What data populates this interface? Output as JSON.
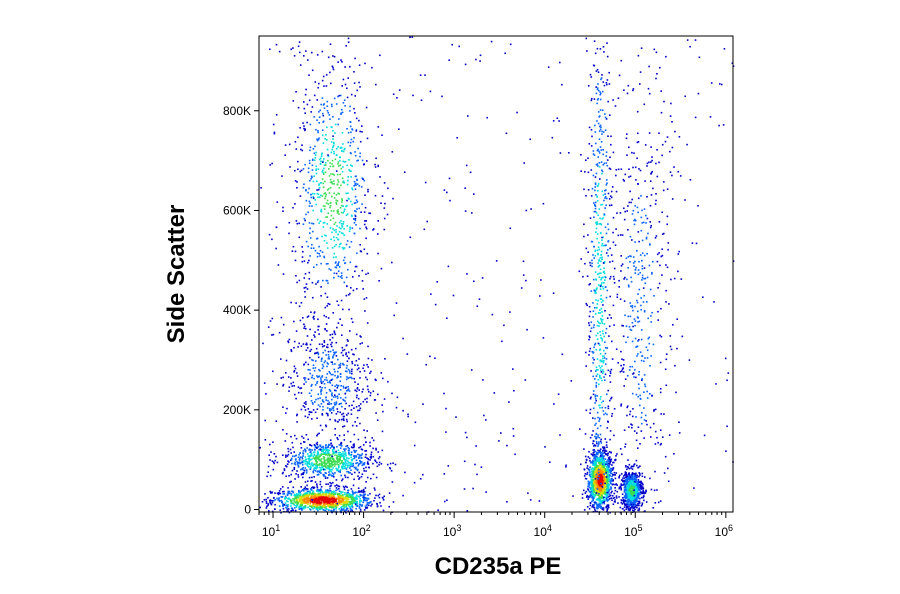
{
  "chart_data": {
    "type": "scatter",
    "subtype": "flow-cytometry-density-dot-plot",
    "title": "",
    "xlabel": "CD235a PE",
    "ylabel": "Side Scatter",
    "x_scale": "log",
    "x_range": [
      7,
      1200000
    ],
    "y_range": [
      -5000,
      950000
    ],
    "x_ticks": [
      {
        "value": 10,
        "base": "10",
        "exp": "1"
      },
      {
        "value": 100,
        "base": "10",
        "exp": "2"
      },
      {
        "value": 1000,
        "base": "10",
        "exp": "3"
      },
      {
        "value": 10000,
        "base": "10",
        "exp": "4"
      },
      {
        "value": 100000,
        "base": "10",
        "exp": "5"
      },
      {
        "value": 1000000,
        "base": "10",
        "exp": "6"
      }
    ],
    "y_ticks": [
      {
        "value": 0,
        "label": "0"
      },
      {
        "value": 200000,
        "label": "200K"
      },
      {
        "value": 400000,
        "label": "400K"
      },
      {
        "value": 600000,
        "label": "600K"
      },
      {
        "value": 800000,
        "label": "800K"
      }
    ],
    "grid": false,
    "legend": "none",
    "color_scale": [
      "#0000c8",
      "#0a64ff",
      "#00dcdc",
      "#3cdc50",
      "#dcdc00",
      "#ff8c00",
      "#e60000"
    ],
    "populations": [
      {
        "x_center": 35,
        "y_center": 20000,
        "x_spread_decades": 0.28,
        "y_spread": 12000,
        "peak_density": 1.0
      },
      {
        "x_center": 40,
        "y_center": 100000,
        "x_spread_decades": 0.25,
        "y_spread": 20000,
        "peak_density": 0.55
      },
      {
        "x_center": 40,
        "y_center": 260000,
        "x_spread_decades": 0.25,
        "y_spread": 60000,
        "peak_density": 0.25
      },
      {
        "x_center": 45,
        "y_center": 640000,
        "x_spread_decades": 0.22,
        "y_spread": 130000,
        "peak_density": 0.5
      },
      {
        "x_center": 40000,
        "y_center": 60000,
        "x_spread_decades": 0.07,
        "y_spread": 30000,
        "peak_density": 0.95
      },
      {
        "x_center": 40000,
        "y_center": 450000,
        "x_spread_decades": 0.07,
        "y_spread": 300000,
        "peak_density": 0.4
      },
      {
        "x_center": 90000,
        "y_center": 40000,
        "x_spread_decades": 0.06,
        "y_spread": 20000,
        "peak_density": 0.5
      },
      {
        "x_center": 110000,
        "y_center": 400000,
        "x_spread_decades": 0.18,
        "y_spread": 250000,
        "peak_density": 0.22
      }
    ]
  }
}
